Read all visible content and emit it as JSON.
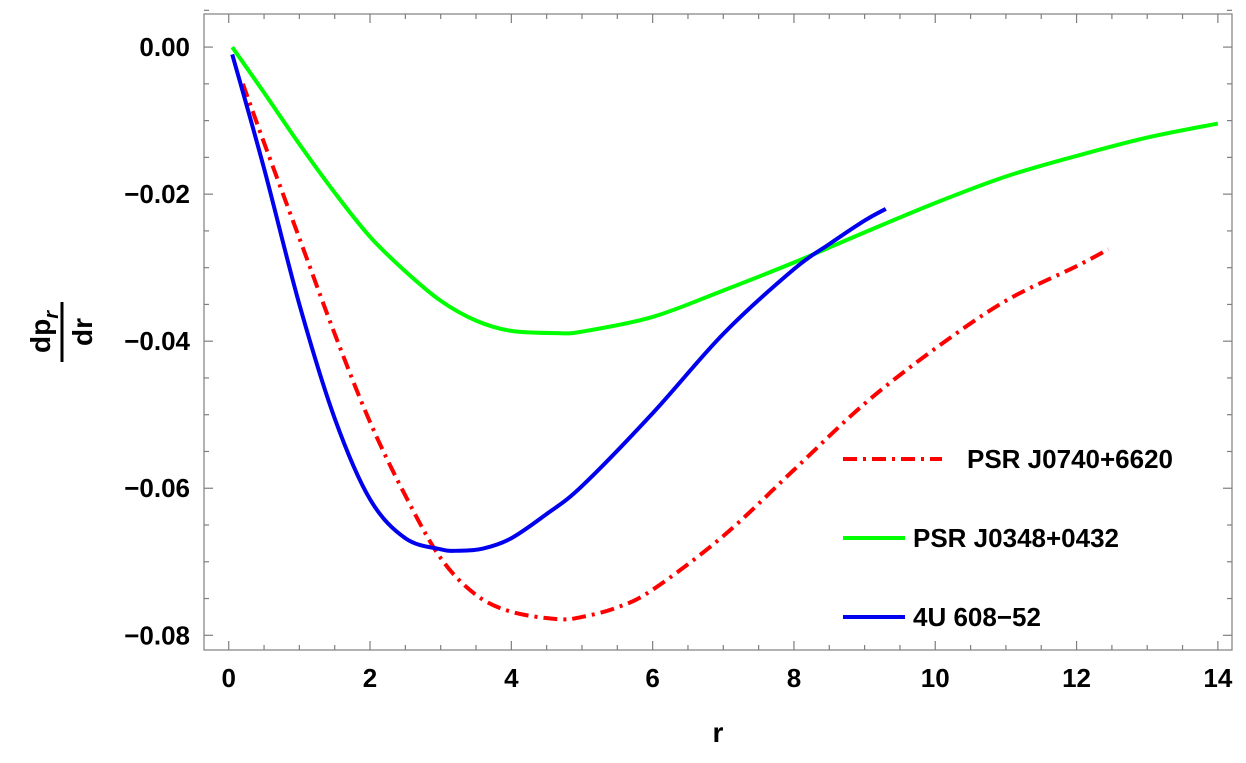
{
  "chart_data": {
    "type": "line",
    "xlabel": "r",
    "ylabel": {
      "numerator_main": "dp",
      "numerator_sub": "r",
      "denominator": "dr"
    },
    "xlim": [
      -0.35,
      14.2
    ],
    "ylim": [
      -0.082,
      0.0045
    ],
    "xticks": [
      0,
      2,
      4,
      6,
      8,
      10,
      12,
      14
    ],
    "xtick_labels": [
      "0",
      "2",
      "4",
      "6",
      "8",
      "10",
      "12",
      "14"
    ],
    "yticks": [
      0.0,
      -0.02,
      -0.04,
      -0.06,
      -0.08
    ],
    "ytick_labels": [
      "0.00",
      "−0.02",
      "−0.04",
      "−0.06",
      "−0.08"
    ],
    "grid": false,
    "legend_position": "right",
    "series": [
      {
        "name": "PSR J0740+6620",
        "color": "#ff0000",
        "style": "dashdot",
        "x": [
          0.2,
          0.5,
          1.0,
          1.5,
          2.0,
          2.5,
          3.0,
          3.5,
          4.0,
          4.65,
          5.0,
          5.5,
          6.0,
          7.0,
          8.0,
          9.0,
          10.0,
          11.0,
          12.0,
          12.45
        ],
        "y": [
          -0.005,
          -0.013,
          -0.026,
          -0.039,
          -0.051,
          -0.061,
          -0.0695,
          -0.0745,
          -0.0768,
          -0.0778,
          -0.0775,
          -0.0762,
          -0.0738,
          -0.0665,
          -0.0575,
          -0.0485,
          -0.041,
          -0.0345,
          -0.0298,
          -0.0275
        ]
      },
      {
        "name": "PSR J0348+0432",
        "color": "#00ff00",
        "style": "solid",
        "x": [
          0.05,
          0.5,
          1.0,
          1.5,
          2.0,
          2.5,
          3.0,
          3.5,
          4.0,
          4.65,
          5.0,
          6.0,
          7.0,
          8.0,
          9.0,
          10.0,
          11.0,
          12.0,
          13.0,
          14.0
        ],
        "y": [
          0.0,
          -0.0062,
          -0.0132,
          -0.0198,
          -0.0258,
          -0.0305,
          -0.0345,
          -0.0372,
          -0.0386,
          -0.0389,
          -0.0387,
          -0.0367,
          -0.0331,
          -0.0293,
          -0.0252,
          -0.0212,
          -0.0176,
          -0.0148,
          -0.0123,
          -0.0104
        ]
      },
      {
        "name": "4U 608−52",
        "color": "#0000ee",
        "style": "solid",
        "x": [
          0.05,
          0.5,
          1.0,
          1.5,
          2.0,
          2.5,
          3.0,
          3.25,
          3.6,
          4.0,
          4.5,
          5.0,
          6.0,
          7.0,
          8.0,
          8.5,
          9.0,
          9.3
        ],
        "y": [
          -0.001,
          -0.0165,
          -0.035,
          -0.0505,
          -0.0615,
          -0.0668,
          -0.0683,
          -0.0685,
          -0.0682,
          -0.0668,
          -0.0635,
          -0.0597,
          -0.0498,
          -0.039,
          -0.0302,
          -0.0268,
          -0.0236,
          -0.022
        ]
      }
    ]
  }
}
